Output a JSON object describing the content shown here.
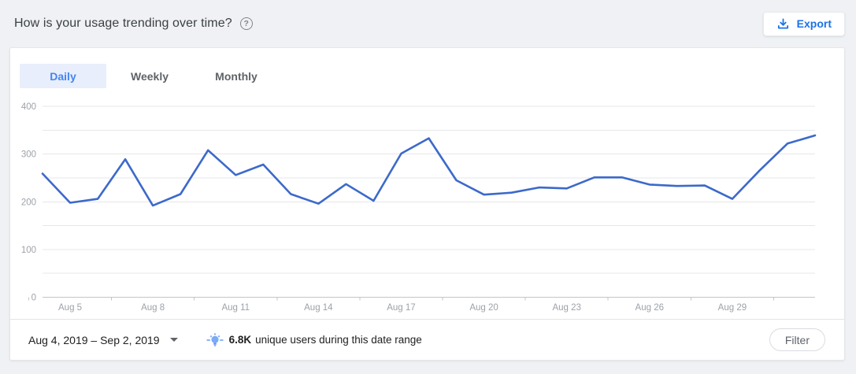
{
  "header": {
    "title": "How is your usage trending over time?",
    "help_icon": "help-circle-icon",
    "export_label": "Export"
  },
  "tabs": [
    {
      "label": "Daily",
      "active": true
    },
    {
      "label": "Weekly",
      "active": false
    },
    {
      "label": "Monthly",
      "active": false
    }
  ],
  "chart_data": {
    "type": "line",
    "title": "Daily usage trend",
    "x": [
      "Aug 4",
      "Aug 5",
      "Aug 6",
      "Aug 7",
      "Aug 8",
      "Aug 9",
      "Aug 10",
      "Aug 11",
      "Aug 12",
      "Aug 13",
      "Aug 14",
      "Aug 15",
      "Aug 16",
      "Aug 17",
      "Aug 18",
      "Aug 19",
      "Aug 20",
      "Aug 21",
      "Aug 22",
      "Aug 23",
      "Aug 24",
      "Aug 25",
      "Aug 26",
      "Aug 27",
      "Aug 28",
      "Aug 29",
      "Aug 30",
      "Aug 31",
      "Sep 1"
    ],
    "values": [
      259,
      198,
      206,
      289,
      192,
      216,
      308,
      256,
      278,
      216,
      196,
      237,
      202,
      301,
      333,
      245,
      215,
      219,
      230,
      228,
      251,
      251,
      236,
      233,
      234,
      206,
      266,
      322,
      339
    ],
    "xtick_labels": [
      "Aug 5",
      "Aug 8",
      "Aug 11",
      "Aug 14",
      "Aug 17",
      "Aug 20",
      "Aug 23",
      "Aug 26",
      "Aug 29"
    ],
    "xtick_day_indices": [
      1,
      4,
      7,
      10,
      13,
      16,
      19,
      22,
      25
    ],
    "ylim": [
      0,
      400
    ],
    "yticks": [
      0,
      100,
      200,
      300,
      400
    ],
    "grid_step": 50,
    "grid": true,
    "legend": "none",
    "line_color": "#3c69cb",
    "axis_color": "#c2c5c9",
    "gridline_color": "#e6e7e9",
    "tick_label_color": "#9da2a8"
  },
  "footer": {
    "date_range": "Aug 4, 2019 – Sep 2, 2019",
    "insight_value": "6.8K",
    "insight_text": "unique users during this date range",
    "filter_label": "Filter"
  },
  "colors": {
    "page_bg": "#eff1f4",
    "card_bg": "#ffffff",
    "accent_blue": "#1a73e8",
    "tab_active_bg": "#e8eefb",
    "tab_active_text": "#4285f4",
    "bulb_blue": "#7baaf7"
  }
}
